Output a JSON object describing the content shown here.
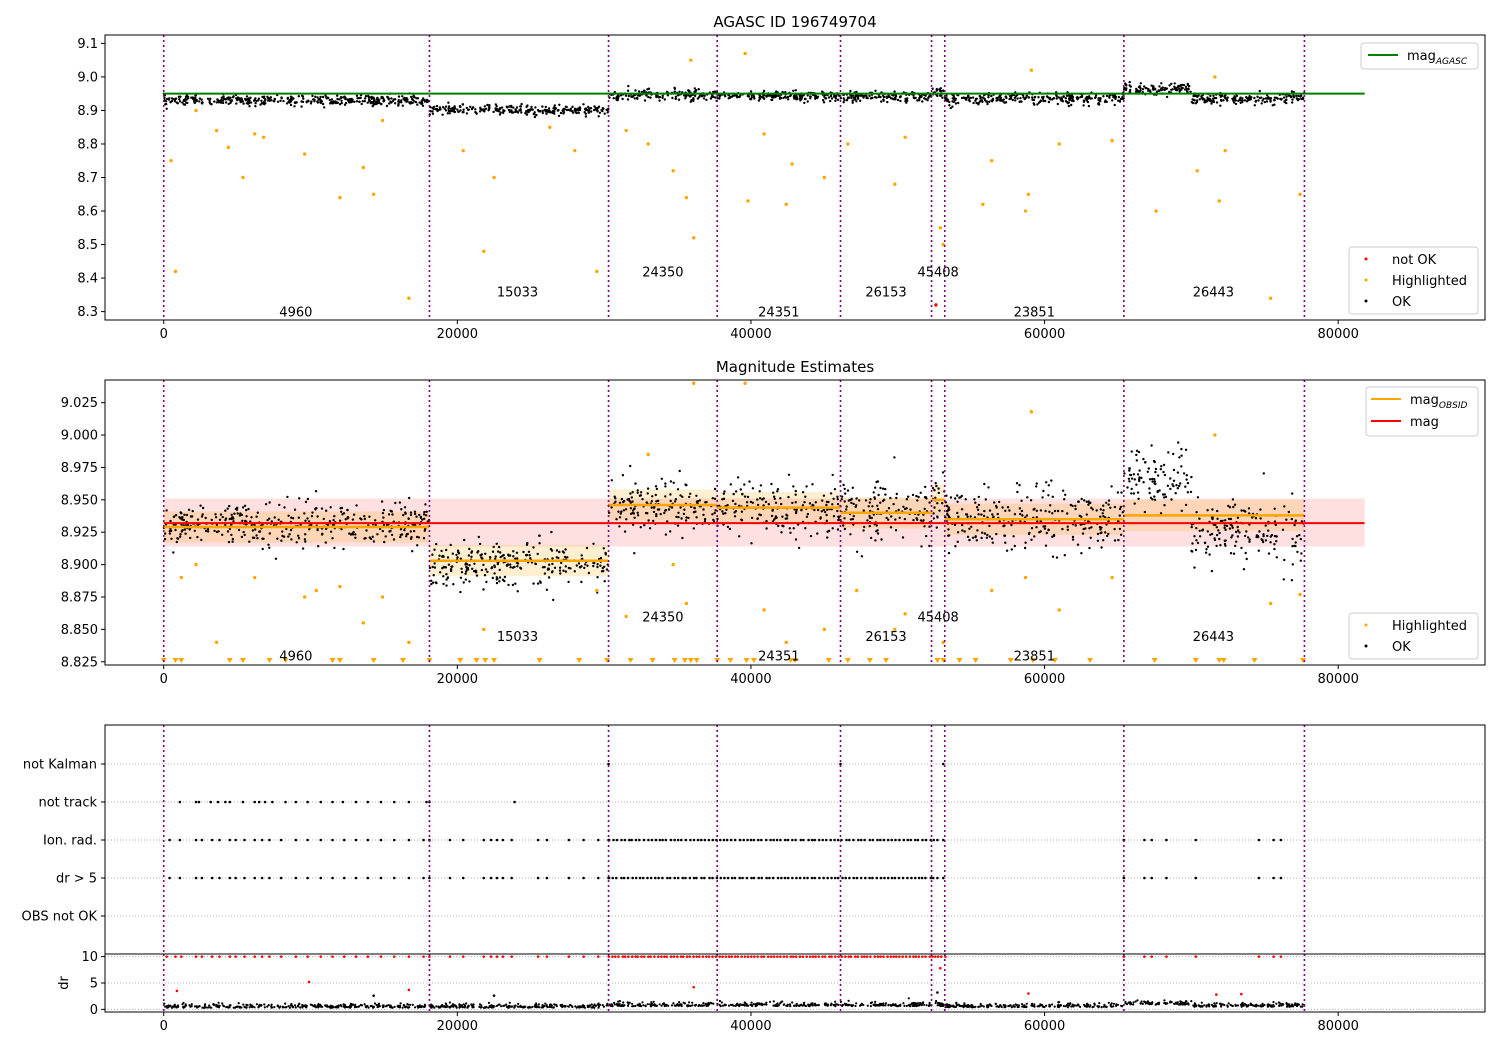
{
  "chart_data": [
    {
      "type": "scatter",
      "title": "AGASC ID 196749704",
      "xlim": [
        -4000,
        90000
      ],
      "ylim": [
        8.275,
        9.125
      ],
      "xticks": [
        0,
        20000,
        40000,
        60000,
        80000
      ],
      "yticks": [
        8.3,
        8.4,
        8.5,
        8.6,
        8.7,
        8.8,
        8.9,
        9.0,
        9.1
      ],
      "obsid_boundaries": [
        0,
        18100,
        30300,
        37700,
        46100,
        52300,
        53200,
        65400,
        77700
      ],
      "obsid_labels": [
        {
          "text": "4960",
          "x": 9000,
          "y": 8.3
        },
        {
          "text": "15033",
          "x": 24100,
          "y": 8.36
        },
        {
          "text": "24350",
          "x": 34000,
          "y": 8.42
        },
        {
          "text": "24351",
          "x": 41900,
          "y": 8.3
        },
        {
          "text": "26153",
          "x": 49200,
          "y": 8.36
        },
        {
          "text": "45408",
          "x": 52750,
          "y": 8.42
        },
        {
          "text": "23851",
          "x": 59300,
          "y": 8.3
        },
        {
          "text": "26443",
          "x": 71500,
          "y": 8.36
        }
      ],
      "mag_agasc": 8.95,
      "segments": [
        {
          "x0": 0,
          "x1": 18100,
          "center": 8.93,
          "band": 0.012
        },
        {
          "x0": 18100,
          "x1": 30300,
          "center": 8.901,
          "band": 0.012
        },
        {
          "x0": 30300,
          "x1": 37700,
          "center": 8.946,
          "band": 0.014
        },
        {
          "x0": 37700,
          "x1": 46100,
          "center": 8.943,
          "band": 0.012
        },
        {
          "x0": 46100,
          "x1": 52300,
          "center": 8.94,
          "band": 0.014
        },
        {
          "x0": 52300,
          "x1": 53200,
          "center": 8.95,
          "band": 0.014
        },
        {
          "x0": 53200,
          "x1": 65400,
          "center": 8.935,
          "band": 0.014
        },
        {
          "x0": 65400,
          "x1": 70000,
          "center": 8.965,
          "band": 0.014
        },
        {
          "x0": 70000,
          "x1": 77700,
          "center": 8.935,
          "band": 0.014
        }
      ],
      "highlighted_outliers": [
        {
          "x": 800,
          "y": 8.42
        },
        {
          "x": 500,
          "y": 8.75
        },
        {
          "x": 2200,
          "y": 8.9
        },
        {
          "x": 3600,
          "y": 8.84
        },
        {
          "x": 4400,
          "y": 8.79
        },
        {
          "x": 5400,
          "y": 8.7
        },
        {
          "x": 6200,
          "y": 8.83
        },
        {
          "x": 6800,
          "y": 8.82
        },
        {
          "x": 9600,
          "y": 8.77
        },
        {
          "x": 12000,
          "y": 8.64
        },
        {
          "x": 13600,
          "y": 8.73
        },
        {
          "x": 14300,
          "y": 8.65
        },
        {
          "x": 14900,
          "y": 8.87
        },
        {
          "x": 16700,
          "y": 8.34
        },
        {
          "x": 20400,
          "y": 8.78
        },
        {
          "x": 21800,
          "y": 8.48
        },
        {
          "x": 22500,
          "y": 8.7
        },
        {
          "x": 26300,
          "y": 8.85
        },
        {
          "x": 28000,
          "y": 8.78
        },
        {
          "x": 29500,
          "y": 8.42
        },
        {
          "x": 31500,
          "y": 8.84
        },
        {
          "x": 33000,
          "y": 8.8
        },
        {
          "x": 34700,
          "y": 8.72
        },
        {
          "x": 35600,
          "y": 8.64
        },
        {
          "x": 36100,
          "y": 8.52
        },
        {
          "x": 35900,
          "y": 9.05
        },
        {
          "x": 39600,
          "y": 9.07
        },
        {
          "x": 39800,
          "y": 8.63
        },
        {
          "x": 40900,
          "y": 8.83
        },
        {
          "x": 42400,
          "y": 8.62
        },
        {
          "x": 42800,
          "y": 8.74
        },
        {
          "x": 45000,
          "y": 8.7
        },
        {
          "x": 46600,
          "y": 8.8
        },
        {
          "x": 49800,
          "y": 8.68
        },
        {
          "x": 50500,
          "y": 8.82
        },
        {
          "x": 52900,
          "y": 8.55
        },
        {
          "x": 53100,
          "y": 8.5
        },
        {
          "x": 55800,
          "y": 8.62
        },
        {
          "x": 56400,
          "y": 8.75
        },
        {
          "x": 58700,
          "y": 8.6
        },
        {
          "x": 58900,
          "y": 8.65
        },
        {
          "x": 59100,
          "y": 9.02
        },
        {
          "x": 61000,
          "y": 8.8
        },
        {
          "x": 64600,
          "y": 8.81
        },
        {
          "x": 67600,
          "y": 8.6
        },
        {
          "x": 70400,
          "y": 8.72
        },
        {
          "x": 71600,
          "y": 9.0
        },
        {
          "x": 71900,
          "y": 8.63
        },
        {
          "x": 72300,
          "y": 8.78
        },
        {
          "x": 75400,
          "y": 8.34
        },
        {
          "x": 77400,
          "y": 8.65
        }
      ],
      "not_ok_points": [
        {
          "x": 52600,
          "y": 8.32
        }
      ],
      "line_legend": [
        {
          "name": "mag",
          "subscript": "AGASC",
          "color": "#008000"
        }
      ],
      "point_legend": [
        {
          "name": "not OK",
          "color": "#ff0000"
        },
        {
          "name": "Highlighted",
          "color": "#ffa500"
        },
        {
          "name": "OK",
          "color": "#000000"
        }
      ]
    },
    {
      "type": "scatter",
      "title": "Magnitude Estimates",
      "xlim": [
        -4000,
        90000
      ],
      "ylim": [
        8.8225,
        9.0425
      ],
      "xticks": [
        0,
        20000,
        40000,
        60000,
        80000
      ],
      "yticks": [
        8.825,
        8.85,
        8.875,
        8.9,
        8.925,
        8.95,
        8.975,
        9.0,
        9.025
      ],
      "obsid_labels": [
        {
          "text": "4960",
          "x": 9000,
          "y": 8.83
        },
        {
          "text": "15033",
          "x": 24100,
          "y": 8.845
        },
        {
          "text": "24350",
          "x": 34000,
          "y": 8.86
        },
        {
          "text": "24351",
          "x": 41900,
          "y": 8.83
        },
        {
          "text": "26153",
          "x": 49200,
          "y": 8.845
        },
        {
          "text": "45408",
          "x": 52750,
          "y": 8.86
        },
        {
          "text": "23851",
          "x": 59300,
          "y": 8.83
        },
        {
          "text": "26443",
          "x": 71500,
          "y": 8.845
        }
      ],
      "mag": 8.932,
      "mag_band": [
        8.914,
        8.951
      ],
      "mag_obsid": [
        {
          "x0": 0,
          "x1": 18100,
          "y": 8.929
        },
        {
          "x0": 18100,
          "x1": 30300,
          "y": 8.903
        },
        {
          "x0": 30300,
          "x1": 37700,
          "y": 8.946
        },
        {
          "x0": 37700,
          "x1": 46100,
          "y": 8.944
        },
        {
          "x0": 46100,
          "x1": 52300,
          "y": 8.94
        },
        {
          "x0": 52300,
          "x1": 53200,
          "y": 8.95
        },
        {
          "x0": 53200,
          "x1": 65400,
          "y": 8.935
        },
        {
          "x0": 65400,
          "x1": 77700,
          "y": 8.938
        }
      ],
      "segments": [
        {
          "x0": 0,
          "x1": 18100,
          "center": 8.93,
          "band": 0.017
        },
        {
          "x0": 18100,
          "x1": 30300,
          "center": 8.901,
          "band": 0.017
        },
        {
          "x0": 30300,
          "x1": 37700,
          "center": 8.946,
          "band": 0.022
        },
        {
          "x0": 37700,
          "x1": 46100,
          "center": 8.943,
          "band": 0.02
        },
        {
          "x0": 46100,
          "x1": 52300,
          "center": 8.94,
          "band": 0.024
        },
        {
          "x0": 52300,
          "x1": 53200,
          "center": 8.95,
          "band": 0.024
        },
        {
          "x0": 53200,
          "x1": 65400,
          "center": 8.935,
          "band": 0.024
        },
        {
          "x0": 65400,
          "x1": 70000,
          "center": 8.965,
          "band": 0.026
        },
        {
          "x0": 70000,
          "x1": 77700,
          "center": 8.925,
          "band": 0.024
        }
      ],
      "highlighted_outliers": [
        {
          "x": 1200,
          "y": 8.89
        },
        {
          "x": 2200,
          "y": 8.9
        },
        {
          "x": 3600,
          "y": 8.84
        },
        {
          "x": 6200,
          "y": 8.89
        },
        {
          "x": 9600,
          "y": 8.875
        },
        {
          "x": 10400,
          "y": 8.88
        },
        {
          "x": 12000,
          "y": 8.883
        },
        {
          "x": 13600,
          "y": 8.855
        },
        {
          "x": 14900,
          "y": 8.875
        },
        {
          "x": 16700,
          "y": 8.84
        },
        {
          "x": 21800,
          "y": 8.85
        },
        {
          "x": 29500,
          "y": 8.88
        },
        {
          "x": 31500,
          "y": 8.86
        },
        {
          "x": 33000,
          "y": 8.985
        },
        {
          "x": 34700,
          "y": 8.9
        },
        {
          "x": 35600,
          "y": 8.87
        },
        {
          "x": 36100,
          "y": 9.04
        },
        {
          "x": 39600,
          "y": 9.04
        },
        {
          "x": 40900,
          "y": 8.865
        },
        {
          "x": 42400,
          "y": 8.84
        },
        {
          "x": 45000,
          "y": 8.85
        },
        {
          "x": 47200,
          "y": 8.88
        },
        {
          "x": 49800,
          "y": 8.85
        },
        {
          "x": 50500,
          "y": 8.862
        },
        {
          "x": 53100,
          "y": 8.84
        },
        {
          "x": 56400,
          "y": 8.88
        },
        {
          "x": 58700,
          "y": 8.89
        },
        {
          "x": 59100,
          "y": 9.018
        },
        {
          "x": 61000,
          "y": 8.865
        },
        {
          "x": 64600,
          "y": 8.89
        },
        {
          "x": 71600,
          "y": 9.0
        },
        {
          "x": 75400,
          "y": 8.87
        },
        {
          "x": 77400,
          "y": 8.877
        }
      ],
      "clipped_markers_x": [
        0,
        800,
        1200,
        4500,
        5400,
        7200,
        8300,
        11500,
        12000,
        14300,
        16300,
        18100,
        20200,
        21300,
        21900,
        22500,
        25600,
        28300,
        30200,
        31800,
        33300,
        34800,
        35500,
        35900,
        36300,
        37700,
        38600,
        39700,
        40200,
        42700,
        43000,
        45300,
        46600,
        48100,
        49200,
        52700,
        53100,
        54200,
        55300,
        57700,
        59200,
        60700,
        63100,
        67500,
        70300,
        71900,
        72200,
        74300,
        77600
      ],
      "line_legend": [
        {
          "name": "mag",
          "subscript": "OBSID",
          "color": "#ffa500"
        },
        {
          "name": "mag",
          "subscript": "",
          "color": "#ff0000"
        }
      ],
      "point_legend": [
        {
          "name": "Highlighted",
          "color": "#ffa500"
        },
        {
          "name": "OK",
          "color": "#000000"
        }
      ]
    },
    {
      "type": "scatter",
      "title": "",
      "xlim": [
        -4000,
        90000
      ],
      "categories": [
        "not Kalman",
        "not track",
        "Ion. rad.",
        "dr > 5",
        "OBS not OK"
      ],
      "flag_points": {
        "not Kalman": [
          30300,
          46100,
          53100
        ],
        "not track": [
          1100,
          2200,
          2400,
          3200,
          3700,
          4200,
          4500,
          5400,
          6200,
          6500,
          6900,
          7400,
          8300,
          9000,
          9800,
          10700,
          11500,
          12200,
          13100,
          13900,
          14800,
          15700,
          16700,
          17900,
          18100,
          23900
        ],
        "Ion. rad.": [
          400,
          1100,
          2200,
          2600,
          3300,
          3800,
          4500,
          4900,
          5500,
          6200,
          6700,
          7200,
          8000,
          9000,
          9800,
          10700,
          11500,
          12300,
          13100,
          13900,
          14800,
          15700,
          16700,
          17700,
          18100,
          19500,
          20400,
          21800,
          22300,
          22700,
          23100,
          23700,
          25500,
          26100,
          27600,
          28600,
          29600,
          30300,
          52700,
          53100,
          65400,
          66800,
          67300,
          68300,
          70300,
          74600,
          75600,
          76100
        ],
        "dr > 5": [
          400,
          1100,
          2200,
          2600,
          3300,
          3800,
          4500,
          4900,
          5500,
          6200,
          6700,
          7200,
          8000,
          9000,
          9800,
          10700,
          11500,
          12300,
          13100,
          13900,
          14800,
          15700,
          16700,
          17700,
          18100,
          19500,
          20400,
          21800,
          22300,
          22700,
          23100,
          23700,
          25500,
          26100,
          27600,
          28600,
          29600,
          30300,
          52700,
          53100,
          65400,
          66800,
          67300,
          68300,
          70300,
          74600,
          75600,
          76100
        ],
        "OBS not OK": []
      },
      "flag_dense_ranges": {
        "Ion. rad.": [
          [
            30300,
            52400
          ]
        ],
        "dr > 5": [
          [
            30300,
            52400
          ]
        ]
      }
    },
    {
      "type": "scatter",
      "title": "",
      "xlim": [
        -4000,
        90000
      ],
      "ylim": [
        -0.5,
        10.5
      ],
      "yticks": [
        0,
        5,
        10
      ],
      "xticks": [
        0,
        20000,
        40000,
        60000,
        80000
      ],
      "ylabel": "dr",
      "clip_value": 10,
      "clipped_x": [
        200,
        800,
        1200,
        2200,
        2600,
        3300,
        3800,
        4500,
        4900,
        5500,
        6200,
        6700,
        7200,
        8000,
        9000,
        9800,
        10700,
        11500,
        12300,
        13100,
        13900,
        14800,
        15700,
        16700,
        17700,
        18100,
        19500,
        20400,
        21800,
        22300,
        22700,
        23100,
        23700,
        25500,
        26100,
        27600,
        28600,
        29600,
        65400,
        66800,
        67300,
        68300,
        70300,
        74600,
        75600,
        76100
      ],
      "clipped_dense_ranges": [
        [
          30300,
          52400
        ],
        [
          52500,
          53200
        ]
      ],
      "baseline_segments": [
        {
          "x0": 0,
          "x1": 30300,
          "y": 0.3
        },
        {
          "x0": 30300,
          "x1": 53200,
          "y": 0.6
        },
        {
          "x0": 53200,
          "x1": 65400,
          "y": 0.4
        },
        {
          "x0": 65400,
          "x1": 70000,
          "y": 0.9
        },
        {
          "x0": 70000,
          "x1": 77700,
          "y": 0.5
        }
      ],
      "mid_points": [
        {
          "x": 900,
          "y": 3.5,
          "c": "red"
        },
        {
          "x": 9900,
          "y": 5.2,
          "c": "red"
        },
        {
          "x": 16700,
          "y": 3.7,
          "c": "red"
        },
        {
          "x": 14300,
          "y": 2.6,
          "c": "black"
        },
        {
          "x": 22500,
          "y": 2.6,
          "c": "black"
        },
        {
          "x": 36100,
          "y": 4.2,
          "c": "red"
        },
        {
          "x": 52900,
          "y": 7.8,
          "c": "red"
        },
        {
          "x": 52700,
          "y": 3.2,
          "c": "black"
        },
        {
          "x": 58900,
          "y": 3.0,
          "c": "red"
        },
        {
          "x": 71700,
          "y": 2.8,
          "c": "red"
        },
        {
          "x": 73400,
          "y": 2.9,
          "c": "red"
        }
      ]
    }
  ]
}
